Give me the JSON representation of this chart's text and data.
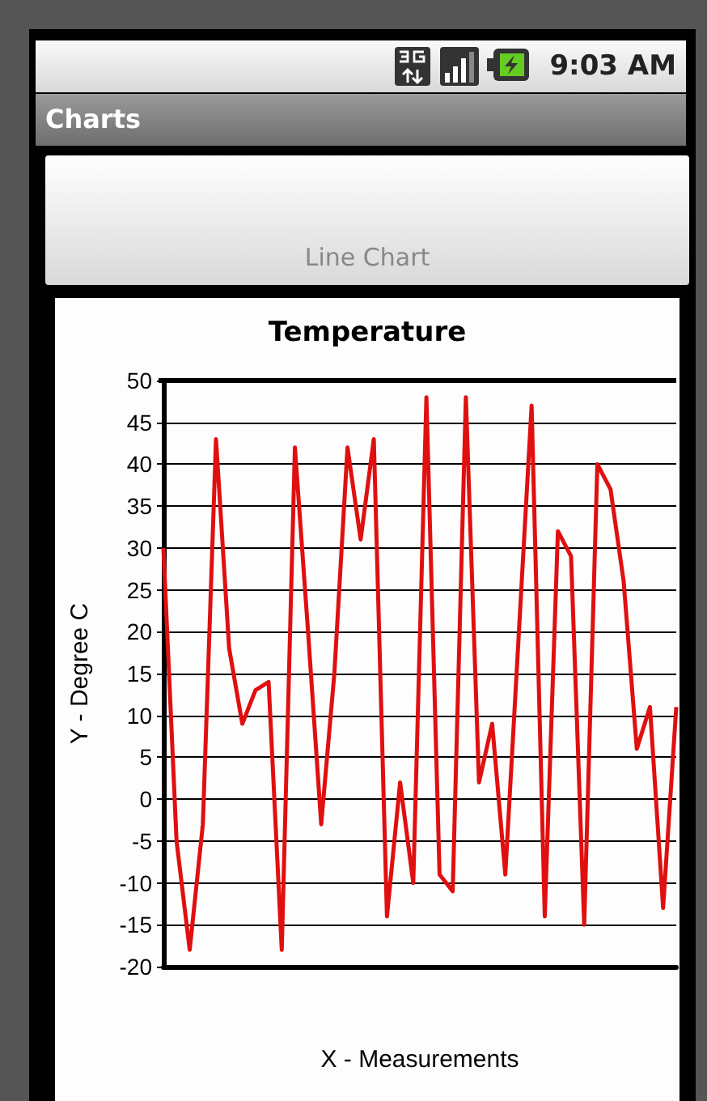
{
  "chart_data": {
    "type": "line",
    "title": "Temperature",
    "xlabel": "X - Measurements",
    "ylabel": "Y - Degree C",
    "annotations": [
      "9:03 AM",
      "Charts",
      "Line Chart"
    ],
    "categories": [
      null,
      null,
      null,
      null,
      null,
      null,
      null,
      null,
      null,
      null,
      null,
      null,
      null,
      null,
      null,
      null,
      null,
      null,
      null,
      null,
      null,
      null,
      null,
      null,
      null,
      null,
      null,
      null,
      null,
      null,
      null,
      null,
      null,
      null,
      null,
      null,
      null,
      null,
      null,
      null
    ],
    "series": [
      {
        "color": "#e01010",
        "values": [
          30,
          -5,
          -18,
          -3,
          43,
          18,
          9,
          13,
          14,
          -18,
          42,
          20,
          -3,
          15,
          42,
          31,
          43,
          -14,
          2,
          -10,
          48,
          -9,
          -11,
          48,
          2,
          9,
          -9,
          19,
          47,
          -14,
          32,
          29,
          -15,
          40,
          37,
          26,
          6,
          11,
          -13,
          11
        ]
      }
    ],
    "ylim": [
      -20,
      50
    ],
    "yticks": [
      -20,
      -15,
      -10,
      -5,
      0,
      5,
      10,
      15,
      20,
      25,
      30,
      35,
      40,
      45,
      50
    ],
    "grid": "y",
    "line_style": "solid",
    "tick_labels": "y"
  }
}
